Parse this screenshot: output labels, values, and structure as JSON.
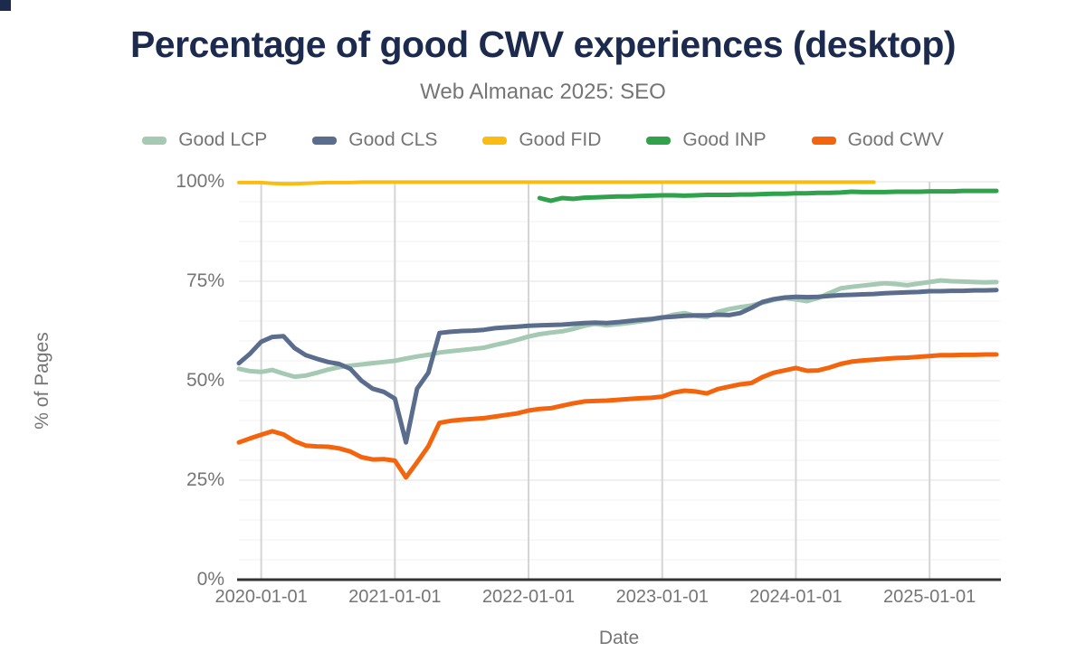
{
  "header": {
    "title": "Percentage of good CWV experiences (desktop)",
    "subtitle": "Web Almanac 2025: SEO"
  },
  "legend": [
    {
      "label": "Good LCP",
      "color": "#a5c9b3"
    },
    {
      "label": "Good CLS",
      "color": "#5b6d8c"
    },
    {
      "label": "Good FID",
      "color": "#fbbc12"
    },
    {
      "label": "Good INP",
      "color": "#31a24c"
    },
    {
      "label": "Good CWV",
      "color": "#f4640d"
    }
  ],
  "chart_data": {
    "type": "line",
    "title": "Percentage of good CWV experiences (desktop)",
    "subtitle": "Web Almanac 2025: SEO",
    "xlabel": "Date",
    "ylabel": "% of Pages",
    "ylim": [
      0,
      100
    ],
    "grid": "on",
    "legend_position": "top",
    "y_ticks": [
      {
        "label": "100%",
        "value": 100
      },
      {
        "label": "75%",
        "value": 75
      },
      {
        "label": "50%",
        "value": 50
      },
      {
        "label": "25%",
        "value": 25
      },
      {
        "label": "0%",
        "value": 0
      }
    ],
    "minor_grid_step_percent": 5,
    "x": [
      "2019-11",
      "2019-12",
      "2020-01",
      "2020-02",
      "2020-03",
      "2020-04",
      "2020-05",
      "2020-06",
      "2020-07",
      "2020-08",
      "2020-09",
      "2020-10",
      "2020-11",
      "2020-12",
      "2021-01",
      "2021-02",
      "2021-03",
      "2021-04",
      "2021-05",
      "2021-06",
      "2021-07",
      "2021-08",
      "2021-09",
      "2021-10",
      "2021-11",
      "2021-12",
      "2022-01",
      "2022-02",
      "2022-03",
      "2022-04",
      "2022-05",
      "2022-06",
      "2022-07",
      "2022-08",
      "2022-09",
      "2022-10",
      "2022-11",
      "2022-12",
      "2023-01",
      "2023-02",
      "2023-03",
      "2023-04",
      "2023-05",
      "2023-06",
      "2023-07",
      "2023-08",
      "2023-09",
      "2023-10",
      "2023-11",
      "2023-12",
      "2024-01",
      "2024-02",
      "2024-03",
      "2024-04",
      "2024-05",
      "2024-06",
      "2024-07",
      "2024-08",
      "2024-09",
      "2024-10",
      "2024-11",
      "2024-12",
      "2025-01",
      "2025-02",
      "2025-03",
      "2025-04",
      "2025-05",
      "2025-06",
      "2025-07"
    ],
    "x_ticks": [
      {
        "label": "2020-01-01",
        "month_index": 2
      },
      {
        "label": "2021-01-01",
        "month_index": 14
      },
      {
        "label": "2022-01-01",
        "month_index": 26
      },
      {
        "label": "2023-01-01",
        "month_index": 38
      },
      {
        "label": "2024-01-01",
        "month_index": 50
      },
      {
        "label": "2025-01-01",
        "month_index": 62
      }
    ],
    "series": [
      {
        "name": "Good LCP",
        "color": "#a5c9b3",
        "values": [
          53.0,
          52.4,
          52.2,
          52.7,
          51.8,
          51.0,
          51.3,
          52.0,
          52.8,
          53.4,
          53.8,
          54.1,
          54.4,
          54.7,
          55.0,
          55.6,
          56.1,
          56.5,
          57.1,
          57.4,
          57.7,
          58.0,
          58.3,
          59.0,
          59.6,
          60.3,
          61.1,
          61.7,
          62.1,
          62.4,
          63.0,
          63.8,
          64.3,
          63.9,
          64.2,
          64.5,
          64.9,
          65.3,
          65.8,
          66.6,
          67.0,
          66.3,
          66.0,
          67.3,
          68.0,
          68.5,
          68.9,
          69.6,
          70.3,
          70.8,
          70.4,
          70.0,
          70.8,
          72.0,
          73.2,
          73.6,
          73.9,
          74.2,
          74.5,
          74.3,
          74.0,
          74.4,
          74.8,
          75.2,
          75.0,
          74.9,
          74.8,
          74.7,
          74.8
        ]
      },
      {
        "name": "Good CLS",
        "color": "#5b6d8c",
        "values": [
          54.4,
          56.8,
          59.8,
          61.0,
          61.2,
          58.2,
          56.4,
          55.5,
          54.7,
          54.2,
          53.0,
          50.0,
          48.0,
          47.2,
          45.5,
          34.5,
          48.0,
          52.0,
          62.0,
          62.3,
          62.5,
          62.6,
          62.8,
          63.2,
          63.4,
          63.6,
          63.8,
          63.9,
          64.0,
          64.1,
          64.3,
          64.5,
          64.6,
          64.5,
          64.7,
          65.0,
          65.3,
          65.5,
          65.9,
          66.1,
          66.3,
          66.4,
          66.4,
          66.6,
          66.5,
          67.0,
          68.3,
          69.8,
          70.5,
          70.9,
          71.1,
          71.0,
          71.1,
          71.3,
          71.5,
          71.6,
          71.7,
          71.8,
          72.0,
          72.1,
          72.2,
          72.3,
          72.5,
          72.5,
          72.6,
          72.6,
          72.7,
          72.7,
          72.8
        ]
      },
      {
        "name": "Good FID",
        "color": "#fbbc12",
        "values": [
          99.8,
          99.8,
          99.8,
          99.6,
          99.5,
          99.5,
          99.6,
          99.7,
          99.8,
          99.8,
          99.8,
          99.9,
          99.9,
          99.9,
          99.9,
          99.9,
          99.9,
          99.9,
          99.9,
          99.9,
          99.9,
          99.9,
          99.9,
          99.9,
          99.9,
          99.9,
          99.9,
          99.9,
          99.9,
          99.9,
          99.9,
          99.9,
          99.9,
          99.9,
          99.9,
          99.9,
          99.9,
          99.9,
          99.9,
          99.9,
          99.9,
          99.9,
          99.9,
          99.9,
          99.9,
          99.9,
          99.9,
          99.9,
          99.9,
          99.9,
          99.9,
          99.9,
          99.9,
          99.9,
          99.9,
          99.9,
          99.9,
          99.9,
          null,
          null,
          null,
          null,
          null,
          null,
          null,
          null,
          null,
          null,
          null
        ]
      },
      {
        "name": "Good INP",
        "color": "#31a24c",
        "values": [
          null,
          null,
          null,
          null,
          null,
          null,
          null,
          null,
          null,
          null,
          null,
          null,
          null,
          null,
          null,
          null,
          null,
          null,
          null,
          null,
          null,
          null,
          null,
          null,
          null,
          null,
          null,
          95.9,
          95.2,
          95.9,
          95.7,
          96.0,
          96.1,
          96.2,
          96.3,
          96.3,
          96.4,
          96.5,
          96.6,
          96.6,
          96.5,
          96.6,
          96.7,
          96.7,
          96.7,
          96.8,
          96.8,
          96.9,
          97.0,
          97.0,
          97.1,
          97.1,
          97.2,
          97.2,
          97.3,
          97.5,
          97.4,
          97.4,
          97.4,
          97.5,
          97.5,
          97.5,
          97.6,
          97.6,
          97.6,
          97.7,
          97.7,
          97.7,
          97.7
        ]
      },
      {
        "name": "Good CWV",
        "color": "#f4640d",
        "values": [
          34.5,
          35.5,
          36.4,
          37.3,
          36.5,
          34.8,
          33.7,
          33.5,
          33.4,
          33.0,
          32.2,
          30.8,
          30.2,
          30.3,
          29.9,
          25.7,
          29.5,
          33.5,
          39.4,
          39.9,
          40.2,
          40.4,
          40.6,
          41.0,
          41.4,
          41.8,
          42.5,
          42.9,
          43.1,
          43.7,
          44.3,
          44.8,
          44.9,
          45.0,
          45.2,
          45.4,
          45.6,
          45.7,
          46.0,
          47.0,
          47.5,
          47.3,
          46.8,
          47.9,
          48.5,
          49.1,
          49.4,
          50.9,
          52.0,
          52.6,
          53.2,
          52.5,
          52.6,
          53.3,
          54.2,
          54.8,
          55.1,
          55.3,
          55.5,
          55.7,
          55.8,
          56.0,
          56.2,
          56.4,
          56.4,
          56.5,
          56.5,
          56.6,
          56.6
        ]
      }
    ]
  },
  "colors": {
    "title": "#1c2b4d",
    "muted_text": "#757575",
    "axis_line": "#333333",
    "grid_minor": "#f1f1f1",
    "grid_major": "#e2e2e2",
    "grid_vertical": "#d5d5d5"
  }
}
